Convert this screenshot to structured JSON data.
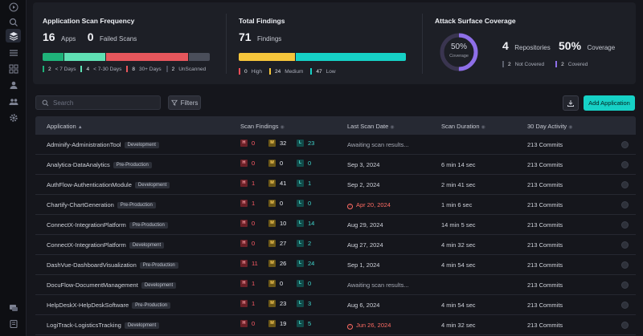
{
  "rail": {
    "icons": [
      "globe-icon",
      "search-icon",
      "layers-icon",
      "list-icon",
      "dashboard-icon",
      "users-icon",
      "team-icon",
      "settings-icon",
      "chat-icon",
      "book-icon"
    ]
  },
  "stats": {
    "scan_frequency": {
      "title": "Application Scan Frequency",
      "apps_count": "16",
      "apps_label": "Apps",
      "failed_count": "0",
      "failed_label": "Failed Scans",
      "segments": [
        {
          "count": "2",
          "label": "< 7 Days",
          "color": "#1fb37a",
          "value": 2
        },
        {
          "count": "4",
          "label": "< 7-30 Days",
          "color": "#5fe0b4",
          "value": 4
        },
        {
          "count": "8",
          "label": "30+ Days",
          "color": "#e6565c",
          "value": 8
        },
        {
          "count": "2",
          "label": "UnScanned",
          "color": "#4a4e5a",
          "value": 2
        }
      ]
    },
    "findings": {
      "title": "Total Findings",
      "total": "71",
      "total_label": "Findings",
      "segments": [
        {
          "count": "0",
          "label": "High",
          "color": "#ff4d57",
          "value": 0
        },
        {
          "count": "24",
          "label": "Medium",
          "color": "#f6c53b",
          "value": 24
        },
        {
          "count": "47",
          "label": "Low",
          "color": "#16d1c6",
          "value": 47
        }
      ]
    },
    "coverage": {
      "title": "Attack Surface Coverage",
      "donut_value": "50%",
      "donut_label": "Coverage",
      "donut_fraction": 0.5,
      "repos_count": "4",
      "repos_label": "Repositories",
      "coverage_pct": "50%",
      "coverage_label": "Coverage",
      "not_covered_count": "2",
      "not_covered_label": "Not Covered",
      "covered_count": "2",
      "covered_label": "Covered",
      "accent": "#8e6fe8"
    }
  },
  "toolbar": {
    "search_placeholder": "Search",
    "filters_label": "Filters",
    "add_label": "Add Application"
  },
  "table": {
    "columns": {
      "application": "Application",
      "scan_findings": "Scan Findings",
      "last_scan": "Last Scan Date",
      "duration": "Scan Duration",
      "activity": "30 Day Activity"
    },
    "finding_labels": {
      "h": "H",
      "m": "M",
      "l": "L"
    },
    "rows": [
      {
        "name": "Adminify-AdministrationTool",
        "env": "Development",
        "h": "0",
        "m": "32",
        "l": "23",
        "date": "Awaiting scan results...",
        "date_state": "pending",
        "duration": "",
        "activity": "213 Commits"
      },
      {
        "name": "Analytica-DataAnalytics",
        "env": "Pre-Production",
        "h": "0",
        "m": "0",
        "l": "0",
        "date": "Sep 3, 2024",
        "date_state": "normal",
        "duration": "6 min 14 sec",
        "activity": "213 Commits"
      },
      {
        "name": "AuthFlow-AuthenticationModule",
        "env": "Development",
        "h": "1",
        "m": "41",
        "l": "1",
        "date": "Sep 2, 2024",
        "date_state": "normal",
        "duration": "2 min 41 sec",
        "activity": "213 Commits"
      },
      {
        "name": "Chartify-ChartGeneration",
        "env": "Pre-Production",
        "h": "1",
        "m": "0",
        "l": "0",
        "date": "Apr 20, 2024",
        "date_state": "warn",
        "duration": "1 min 6 sec",
        "activity": "213 Commits"
      },
      {
        "name": "ConnectX-IntegrationPlatform",
        "env": "Pre-Production",
        "h": "0",
        "m": "10",
        "l": "14",
        "date": "Aug 29, 2024",
        "date_state": "normal",
        "duration": "14 min 5 sec",
        "activity": "213 Commits"
      },
      {
        "name": "ConnectX-IntegrationPlatform",
        "env": "Development",
        "h": "0",
        "m": "27",
        "l": "2",
        "date": "Aug 27, 2024",
        "date_state": "normal",
        "duration": "4 min 32 sec",
        "activity": "213 Commits"
      },
      {
        "name": "DashVue-DashboardVisualization",
        "env": "Pre-Production",
        "h": "11",
        "m": "26",
        "l": "24",
        "date": "Sep 1, 2024",
        "date_state": "normal",
        "duration": "4 min 54 sec",
        "activity": "213 Commits"
      },
      {
        "name": "DocuFlow-DocumentManagement",
        "env": "Development",
        "h": "1",
        "m": "0",
        "l": "0",
        "date": "Awaiting scan results...",
        "date_state": "pending",
        "duration": "",
        "activity": "213 Commits"
      },
      {
        "name": "HelpDeskX-HelpDeskSoftware",
        "env": "Pre-Production",
        "h": "1",
        "m": "23",
        "l": "3",
        "date": "Aug 6, 2024",
        "date_state": "normal",
        "duration": "4 min 54 sec",
        "activity": "213 Commits"
      },
      {
        "name": "LogiTrack-LogisticsTracking",
        "env": "Development",
        "h": "0",
        "m": "19",
        "l": "5",
        "date": "Jun 26, 2024",
        "date_state": "warn",
        "duration": "4 min 32 sec",
        "activity": "213 Commits"
      }
    ]
  }
}
